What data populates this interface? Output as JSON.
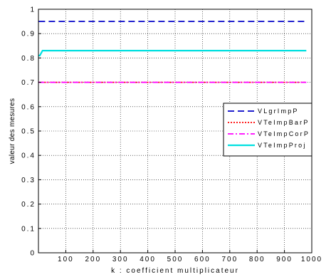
{
  "chart_data": {
    "type": "line",
    "title": "",
    "xlabel": "k : coefficient multiplicateur",
    "ylabel": "valeur des mesures",
    "xlim": [
      0,
      1000
    ],
    "ylim": [
      0,
      1
    ],
    "xticks": [
      100,
      200,
      300,
      400,
      500,
      600,
      700,
      800,
      900,
      1000
    ],
    "xtick_labels": [
      "100",
      "200",
      "300",
      "400",
      "500",
      "600",
      "700",
      "800",
      "900",
      "1000"
    ],
    "yticks": [
      0,
      0.1,
      0.2,
      0.3,
      0.4,
      0.5,
      0.6,
      0.7,
      0.8,
      0.9,
      1
    ],
    "ytick_labels": [
      "0",
      "0.1",
      "0.2",
      "0.3",
      "0.4",
      "0.5",
      "0.6",
      "0.7",
      "0.8",
      "0.9",
      "1"
    ],
    "grid": true,
    "legend_position": "right",
    "series": [
      {
        "name": "VLgrImpP",
        "color": "#0000c8",
        "style": "dashed",
        "x": [
          1,
          980
        ],
        "y": [
          0.95,
          0.95
        ]
      },
      {
        "name": "VTeImpBarP",
        "color": "#ff0000",
        "style": "dotted",
        "x": [
          1,
          980
        ],
        "y": [
          0.7,
          0.7
        ]
      },
      {
        "name": "VTeImpCorP",
        "color": "#ff00ff",
        "style": "dashdot",
        "x": [
          1,
          980
        ],
        "y": [
          0.7,
          0.7
        ]
      },
      {
        "name": "VTeImpProj",
        "color": "#00e0e0",
        "style": "solid",
        "x": [
          1,
          5,
          15,
          980
        ],
        "y": [
          0.81,
          0.81,
          0.83,
          0.83
        ]
      }
    ]
  }
}
